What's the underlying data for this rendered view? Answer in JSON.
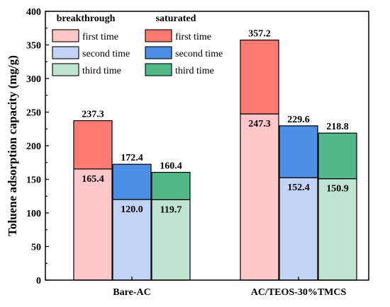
{
  "chart_data": {
    "type": "bar",
    "title": "",
    "xlabel": "",
    "ylabel": "Toluene adsorption capacity (mg/g)",
    "ylim": [
      0,
      400
    ],
    "yticks": [
      0,
      50,
      100,
      150,
      200,
      250,
      300,
      350,
      400
    ],
    "categories": [
      "Bare-AC",
      "AC/TEOS-30%TMCS"
    ],
    "legend_placement": "top-left",
    "legend_groups": [
      {
        "title": "breakthrough",
        "entries": [
          {
            "label": "first time",
            "color": "#ffc7c7"
          },
          {
            "label": "second time",
            "color": "#c3d2f7"
          },
          {
            "label": "third time",
            "color": "#bfe4d2"
          }
        ]
      },
      {
        "title": "saturated",
        "entries": [
          {
            "label": "first time",
            "color": "#ff7a72"
          },
          {
            "label": "second time",
            "color": "#4d8fe6"
          },
          {
            "label": "third time",
            "color": "#52b88a"
          }
        ]
      }
    ],
    "runs": [
      "first time",
      "second time",
      "third time"
    ],
    "series": [
      {
        "name": "breakthrough",
        "values": [
          [
            165.4,
            120.0,
            119.7
          ],
          [
            247.3,
            152.4,
            150.9
          ]
        ],
        "labels": [
          [
            "165.4",
            "120.0",
            "119.7"
          ],
          [
            "247.3",
            "152.4",
            "150.9"
          ]
        ],
        "colors": [
          "#ffc7c7",
          "#c3d2f7",
          "#bfe4d2"
        ]
      },
      {
        "name": "saturated",
        "values": [
          [
            237.3,
            172.4,
            160.4
          ],
          [
            357.2,
            229.6,
            218.8
          ]
        ],
        "labels": [
          [
            "237.3",
            "172.4",
            "160.4"
          ],
          [
            "357.2",
            "229.6",
            "218.8"
          ]
        ],
        "colors": [
          "#ff7a72",
          "#4d8fe6",
          "#52b88a"
        ]
      }
    ]
  }
}
